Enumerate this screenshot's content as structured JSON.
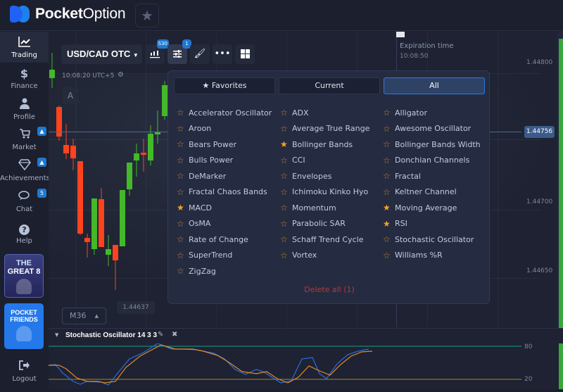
{
  "header": {
    "logo_bold": "Pocket",
    "logo_light": "Option",
    "favorites_icon": "star-icon"
  },
  "sidebar": {
    "items": [
      {
        "label": "Trading",
        "icon": "chart-line-icon",
        "glyph": "📈"
      },
      {
        "label": "Finance",
        "icon": "dollar-icon",
        "glyph": "$"
      },
      {
        "label": "Profile",
        "icon": "user-icon",
        "glyph": "👤"
      },
      {
        "label": "Market",
        "icon": "cart-icon",
        "glyph": "🛒",
        "badge": "🔔"
      },
      {
        "label": "Achievements",
        "icon": "diamond-icon",
        "glyph": "💎",
        "badge": "🔔"
      },
      {
        "label": "Chat",
        "icon": "chat-icon",
        "glyph": "💬",
        "badge": "5"
      },
      {
        "label": "Help",
        "icon": "help-icon",
        "glyph": "?"
      }
    ],
    "promo1": {
      "line1": "THE",
      "line2": "GREAT 8"
    },
    "promo2": {
      "line1": "POCKET",
      "line2": "FRIENDS"
    },
    "logout": {
      "label": "Logout",
      "icon": "logout-icon"
    }
  },
  "toolbar": {
    "pair": "USD/CAD OTC",
    "chart_type_badge": "S30",
    "indicators_badge": "1"
  },
  "chart": {
    "time": "10:08:20 UTC+5",
    "auto_label": "A",
    "expiration_label": "Expiration time",
    "expiration_time": "10:08:50",
    "current_price": "1.44756",
    "axis": [
      "1.44800",
      "1.44700",
      "1.44650"
    ],
    "low_price": "1.44637",
    "timeframe": "M36",
    "colors": {
      "up": "#44b82a",
      "down": "#ff431d"
    }
  },
  "indicators_panel": {
    "tabs": [
      {
        "label": "Favorites",
        "icon": "star-icon"
      },
      {
        "label": "Current"
      },
      {
        "label": "All",
        "selected": true
      }
    ],
    "columns": [
      [
        {
          "name": "Accelerator Oscillator",
          "fav": false
        },
        {
          "name": "Aroon",
          "fav": false
        },
        {
          "name": "Bears Power",
          "fav": false
        },
        {
          "name": "Bulls Power",
          "fav": false
        },
        {
          "name": "DeMarker",
          "fav": false
        },
        {
          "name": "Fractal Chaos Bands",
          "fav": false
        },
        {
          "name": "MACD",
          "fav": true
        },
        {
          "name": "OsMA",
          "fav": false
        },
        {
          "name": "Rate of Change",
          "fav": false
        },
        {
          "name": "SuperTrend",
          "fav": false
        },
        {
          "name": "ZigZag",
          "fav": false
        }
      ],
      [
        {
          "name": "ADX",
          "fav": false
        },
        {
          "name": "Average True Range",
          "fav": false
        },
        {
          "name": "Bollinger Bands",
          "fav": true
        },
        {
          "name": "CCI",
          "fav": false
        },
        {
          "name": "Envelopes",
          "fav": false
        },
        {
          "name": "Ichimoku Kinko Hyo",
          "fav": false
        },
        {
          "name": "Momentum",
          "fav": false
        },
        {
          "name": "Parabolic SAR",
          "fav": false
        },
        {
          "name": "Schaff Trend Cycle",
          "fav": false
        },
        {
          "name": "Vortex",
          "fav": false
        }
      ],
      [
        {
          "name": "Alligator",
          "fav": false
        },
        {
          "name": "Awesome Oscillator",
          "fav": false
        },
        {
          "name": "Bollinger Bands Width",
          "fav": false
        },
        {
          "name": "Donchian Channels",
          "fav": false
        },
        {
          "name": "Fractal",
          "fav": false
        },
        {
          "name": "Keltner Channel",
          "fav": false
        },
        {
          "name": "Moving Average",
          "fav": true
        },
        {
          "name": "RSI",
          "fav": true
        },
        {
          "name": "Stochastic Oscillator",
          "fav": false
        },
        {
          "name": "Williams %R",
          "fav": false
        }
      ]
    ],
    "delete_all": "Delete all (1)"
  },
  "oscillator": {
    "title": "Stochastic Oscillator  14 3 3",
    "upper": "80",
    "lower": "20"
  }
}
